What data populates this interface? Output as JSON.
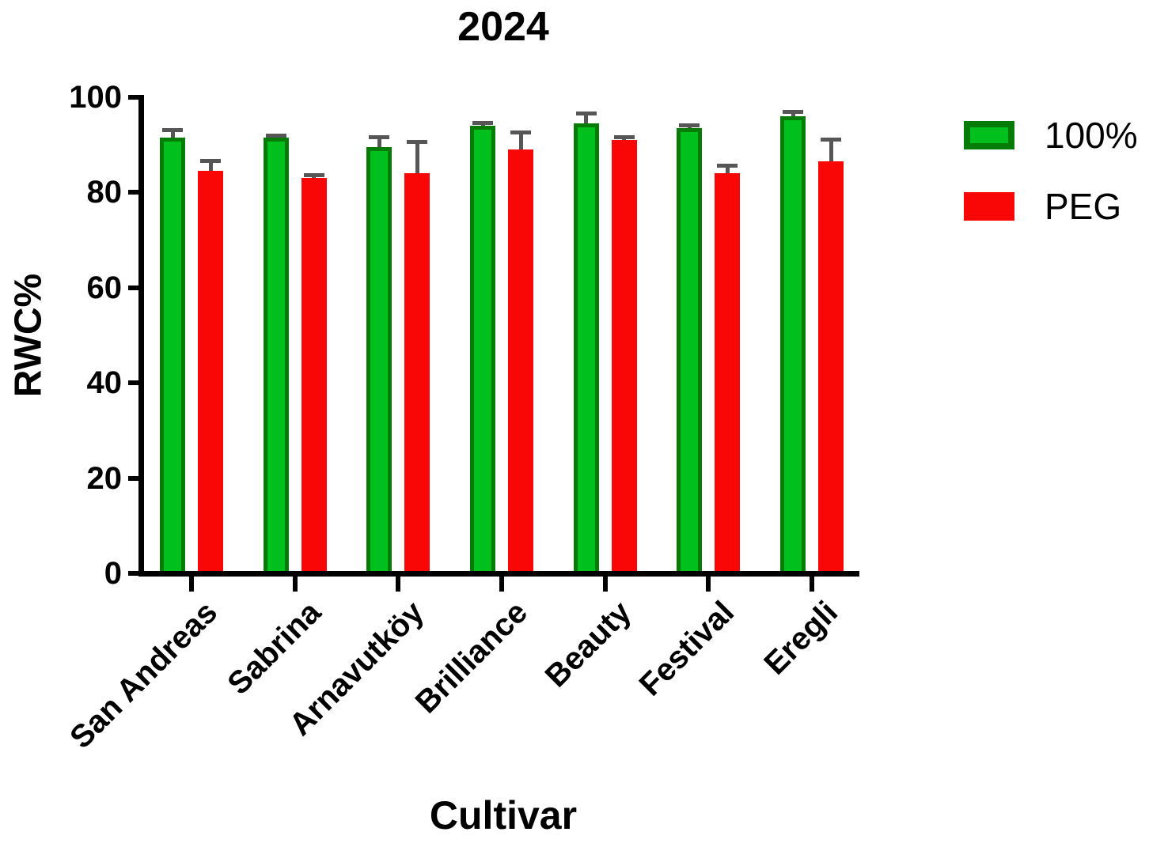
{
  "title": "2024",
  "chart_data": {
    "type": "bar",
    "title": "2024",
    "xlabel": "Cultivar",
    "ylabel": "RWC%",
    "ylim": [
      0,
      100
    ],
    "y_ticks": [
      0,
      20,
      40,
      60,
      80,
      100
    ],
    "grid": false,
    "legend_position": "right",
    "error_bars": "sd-upper",
    "error_color": "#565656",
    "categories": [
      "San Andreas",
      "Sabrina",
      "Arnavutköy",
      "Brilliance",
      "Beauty",
      "Festival",
      "Eregli"
    ],
    "series": [
      {
        "name": "100%",
        "values": [
          91.5,
          91.5,
          89.5,
          94,
          94.5,
          93.5,
          96
        ],
        "errors": [
          2,
          0.8,
          2.5,
          1,
          2.5,
          1,
          1.3
        ],
        "fill": "#00c01e",
        "border": "#067c06"
      },
      {
        "name": "PEG",
        "values": [
          84.5,
          83,
          84,
          89,
          91,
          84,
          86.5
        ],
        "errors": [
          2.5,
          1,
          7,
          4,
          1,
          2,
          5
        ],
        "fill": "#f90606",
        "border": "#f90606"
      }
    ]
  }
}
